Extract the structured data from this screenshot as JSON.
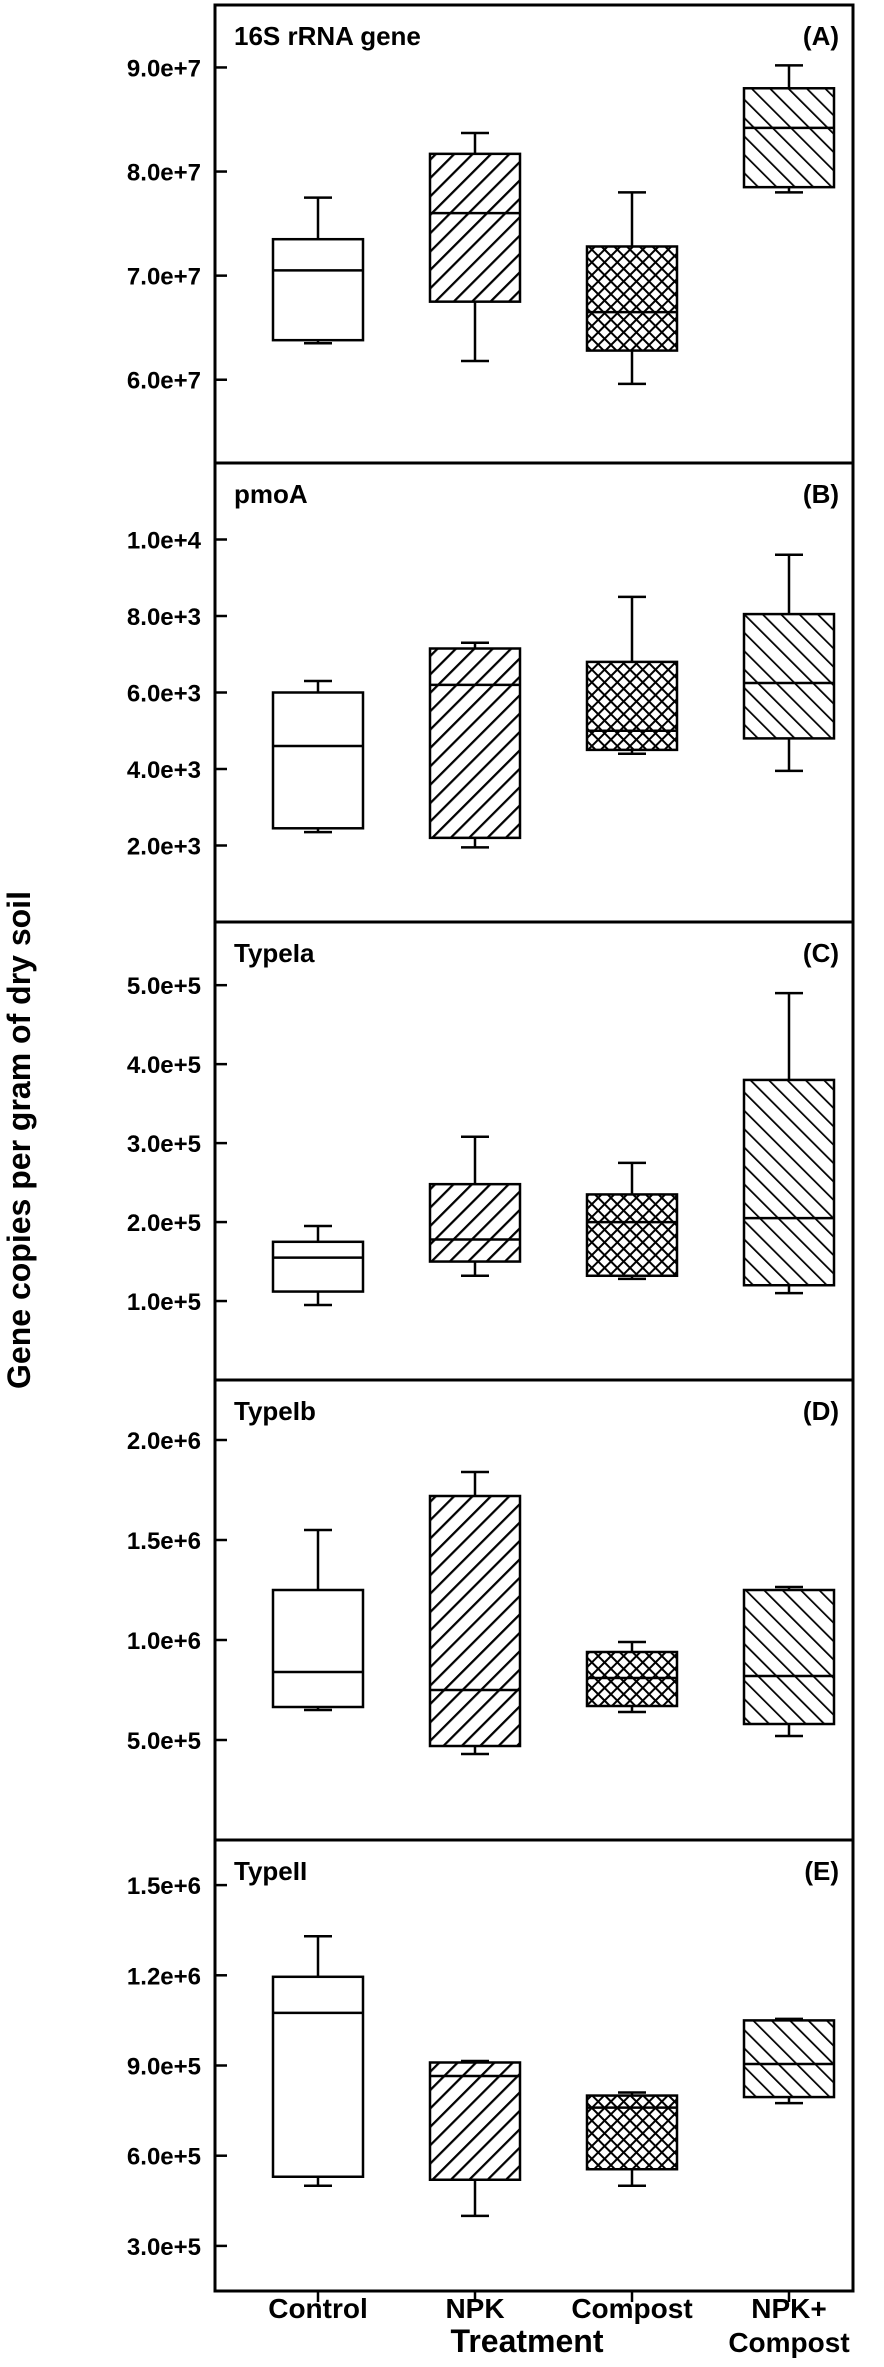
{
  "chart_data": {
    "type": "boxplot",
    "ylabel": "Gene copies per gram of dry soil",
    "xlabel": "Treatment",
    "categories": [
      {
        "name": "control",
        "lines": [
          "Control"
        ],
        "pattern": "none"
      },
      {
        "name": "npk",
        "lines": [
          "NPK"
        ],
        "pattern": "diag-right"
      },
      {
        "name": "compost",
        "lines": [
          "Compost"
        ],
        "pattern": "crosshatch"
      },
      {
        "name": "npk-compost",
        "lines": [
          "NPK+",
          "Compost"
        ],
        "pattern": "diag-left"
      }
    ],
    "panels": [
      {
        "id": "a",
        "title": "16S rRNA gene",
        "letter": "(A)",
        "ylim": [
          52000000,
          96000000
        ],
        "ticks": [
          {
            "value": 60000000,
            "label": "6.0e+7"
          },
          {
            "value": 70000000,
            "label": "7.0e+7"
          },
          {
            "value": 80000000,
            "label": "8.0e+7"
          },
          {
            "value": 90000000,
            "label": "9.0e+7"
          }
        ],
        "boxes": [
          {
            "min": 63500000,
            "q1": 63800000,
            "median": 70500000,
            "q3": 73500000,
            "max": 77500000
          },
          {
            "min": 61800000,
            "q1": 67500000,
            "median": 76000000,
            "q3": 81700000,
            "max": 83700000
          },
          {
            "min": 59600000,
            "q1": 62800000,
            "median": 66500000,
            "q3": 72800000,
            "max": 78000000
          },
          {
            "min": 78000000,
            "q1": 78500000,
            "median": 84200000,
            "q3": 88000000,
            "max": 90200000
          }
        ]
      },
      {
        "id": "b",
        "title": "pmoA",
        "letter": "(B)",
        "ylim": [
          0,
          12000
        ],
        "ticks": [
          {
            "value": 2000,
            "label": "2.0e+3"
          },
          {
            "value": 4000,
            "label": "4.0e+3"
          },
          {
            "value": 6000,
            "label": "6.0e+3"
          },
          {
            "value": 8000,
            "label": "8.0e+3"
          },
          {
            "value": 10000,
            "label": "1.0e+4"
          }
        ],
        "boxes": [
          {
            "min": 2350,
            "q1": 2450,
            "median": 4600,
            "q3": 6000,
            "max": 6300
          },
          {
            "min": 1950,
            "q1": 2200,
            "median": 6200,
            "q3": 7150,
            "max": 7300
          },
          {
            "min": 4400,
            "q1": 4500,
            "median": 5000,
            "q3": 6800,
            "max": 8500
          },
          {
            "min": 3950,
            "q1": 4800,
            "median": 6250,
            "q3": 8050,
            "max": 9600
          }
        ]
      },
      {
        "id": "c",
        "title": "TypeIa",
        "letter": "(C)",
        "ylim": [
          0,
          580000
        ],
        "ticks": [
          {
            "value": 100000,
            "label": "1.0e+5"
          },
          {
            "value": 200000,
            "label": "2.0e+5"
          },
          {
            "value": 300000,
            "label": "3.0e+5"
          },
          {
            "value": 400000,
            "label": "4.0e+5"
          },
          {
            "value": 500000,
            "label": "5.0e+5"
          }
        ],
        "boxes": [
          {
            "min": 95000,
            "q1": 112000,
            "median": 155000,
            "q3": 175000,
            "max": 195000
          },
          {
            "min": 132000,
            "q1": 150000,
            "median": 178000,
            "q3": 248000,
            "max": 308000
          },
          {
            "min": 128000,
            "q1": 132000,
            "median": 200000,
            "q3": 235000,
            "max": 275000
          },
          {
            "min": 110000,
            "q1": 120000,
            "median": 205000,
            "q3": 380000,
            "max": 490000
          }
        ]
      },
      {
        "id": "d",
        "title": "TypeIb",
        "letter": "(D)",
        "ylim": [
          0,
          2300000
        ],
        "ticks": [
          {
            "value": 500000,
            "label": "5.0e+5"
          },
          {
            "value": 1000000,
            "label": "1.0e+6"
          },
          {
            "value": 1500000,
            "label": "1.5e+6"
          },
          {
            "value": 2000000,
            "label": "2.0e+6"
          }
        ],
        "boxes": [
          {
            "min": 650000,
            "q1": 665000,
            "median": 840000,
            "q3": 1250000,
            "max": 1550000
          },
          {
            "min": 430000,
            "q1": 470000,
            "median": 750000,
            "q3": 1720000,
            "max": 1840000
          },
          {
            "min": 640000,
            "q1": 670000,
            "median": 810000,
            "q3": 940000,
            "max": 990000
          },
          {
            "min": 520000,
            "q1": 580000,
            "median": 820000,
            "q3": 1250000,
            "max": 1265000
          }
        ]
      },
      {
        "id": "e",
        "title": "TypeII",
        "letter": "(E)",
        "ylim": [
          150000,
          1650000
        ],
        "ticks": [
          {
            "value": 300000,
            "label": "3.0e+5"
          },
          {
            "value": 600000,
            "label": "6.0e+5"
          },
          {
            "value": 900000,
            "label": "9.0e+5"
          },
          {
            "value": 1200000,
            "label": "1.2e+6"
          },
          {
            "value": 1500000,
            "label": "1.5e+6"
          }
        ],
        "boxes": [
          {
            "min": 500000,
            "q1": 530000,
            "median": 1075000,
            "q3": 1195000,
            "max": 1330000
          },
          {
            "min": 400000,
            "q1": 520000,
            "median": 865000,
            "q3": 910000,
            "max": 915000
          },
          {
            "min": 500000,
            "q1": 555000,
            "median": 760000,
            "q3": 800000,
            "max": 810000
          },
          {
            "min": 775000,
            "q1": 795000,
            "median": 905000,
            "q3": 1050000,
            "max": 1055000
          }
        ]
      }
    ]
  }
}
